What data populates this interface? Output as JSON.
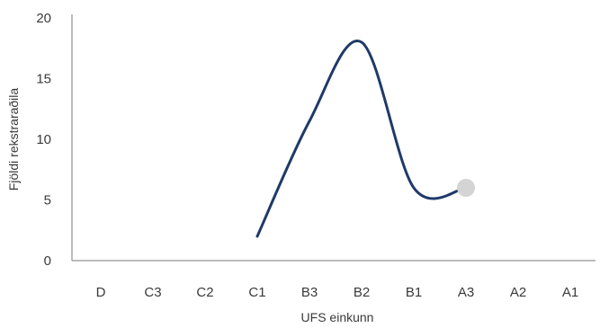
{
  "chart_data": {
    "type": "line",
    "xlabel": "UFS einkunn",
    "ylabel": "Fjöldi rekstraraðila",
    "categories": [
      "D",
      "C3",
      "C2",
      "C1",
      "B3",
      "B2",
      "B1",
      "A3",
      "A2",
      "A1"
    ],
    "yticks": [
      0,
      5,
      10,
      15,
      20
    ],
    "ylim": [
      0,
      20
    ],
    "series": [
      {
        "values": [
          null,
          null,
          null,
          2,
          11.5,
          18,
          6,
          6,
          null,
          null
        ],
        "color": "#1f3a68"
      }
    ],
    "end_marker": {
      "category": "A3",
      "value": 6,
      "color": "#d4d4d4"
    },
    "axis_color": "#7a7a7a",
    "legend": "none",
    "grid": false
  }
}
